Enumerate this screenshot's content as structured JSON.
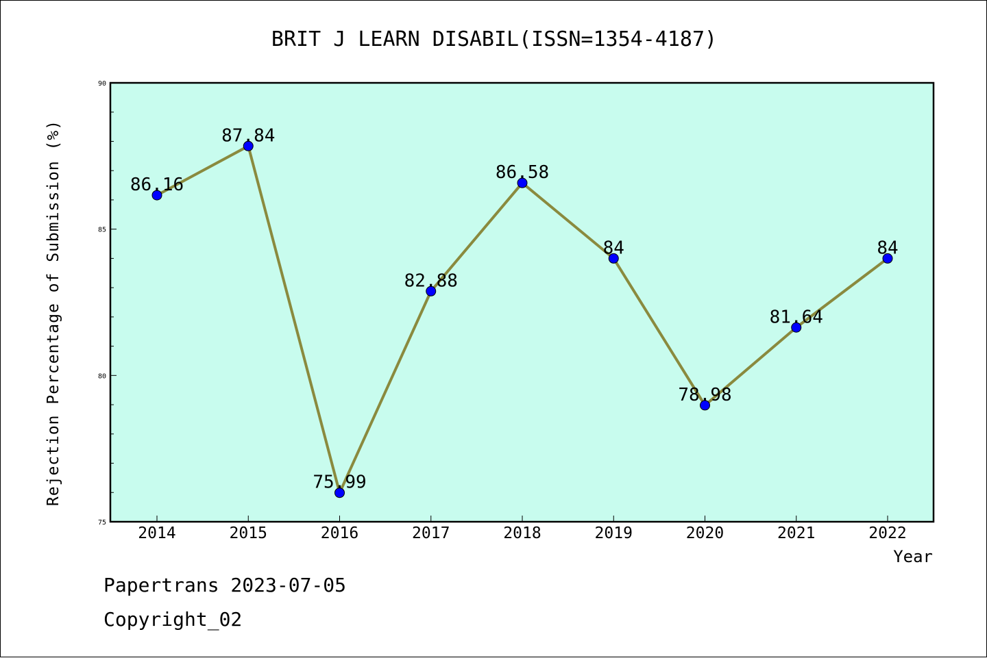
{
  "chart_data": {
    "type": "line",
    "title": "BRIT J LEARN DISABIL(ISSN=1354-4187)",
    "xlabel": "Year",
    "ylabel": "Rejection Percentage of Submission (%)",
    "categories": [
      "2014",
      "2015",
      "2016",
      "2017",
      "2018",
      "2019",
      "2020",
      "2021",
      "2022"
    ],
    "values": [
      86.16,
      87.84,
      75.99,
      82.88,
      86.58,
      84,
      78.98,
      81.64,
      84
    ],
    "data_labels": [
      "86.16",
      "87.84",
      "75.99",
      "82.88",
      "86.58",
      "84",
      "78.98",
      "81.64",
      "84"
    ],
    "ylim": [
      75,
      90
    ],
    "yticks": [
      75,
      80,
      85,
      90
    ],
    "ytick_labels": [
      "75",
      "80",
      "85",
      "90"
    ],
    "grid": false,
    "colors": {
      "plot_background": "#c8fcee",
      "line": "#8a8a3e",
      "marker": "#0000ff"
    }
  },
  "footer": {
    "line1": "Papertrans 2023-07-05",
    "line2": "Copyright_02"
  }
}
